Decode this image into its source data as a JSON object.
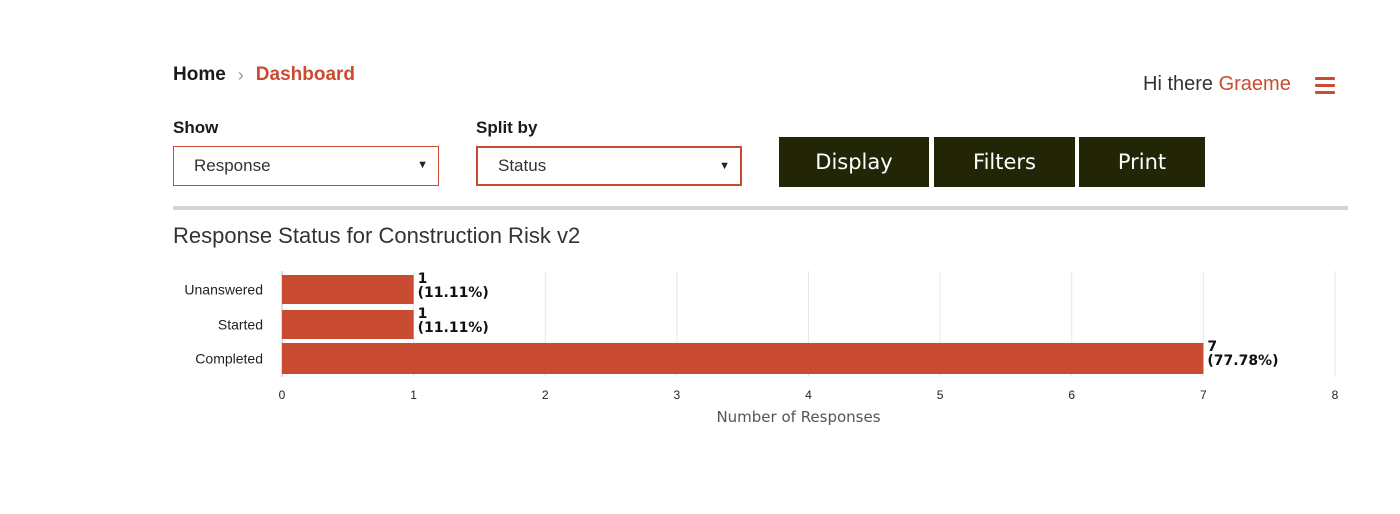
{
  "breadcrumb": {
    "home": "Home",
    "separator": "›",
    "current": "Dashboard"
  },
  "header": {
    "greeting": "Hi there",
    "user": "Graeme",
    "menu_icon": "hamburger-menu-icon"
  },
  "controls": {
    "show_label": "Show",
    "show_value": "Response",
    "split_label": "Split by",
    "split_value": "Status",
    "caret": "▼",
    "buttons": {
      "display": "Display",
      "filters": "Filters",
      "print": "Print"
    }
  },
  "colors": {
    "accent": "#c94b32",
    "button_bg": "#222606",
    "bar": "#c94b32"
  },
  "chart_data": {
    "type": "bar",
    "orientation": "horizontal",
    "title": "Response Status for Construction Risk v2",
    "xlabel": "Number of Responses",
    "ylabel": "",
    "categories": [
      "Unanswered",
      "Started",
      "Completed"
    ],
    "values": [
      1,
      1,
      7
    ],
    "value_labels": [
      "1",
      "1",
      "7"
    ],
    "percent_labels": [
      "(11.11%)",
      "(11.11%)",
      "(77.78%)"
    ],
    "xlim": [
      0,
      8
    ],
    "xticks": [
      "0",
      "1",
      "2",
      "3",
      "4",
      "5",
      "6",
      "7",
      "8"
    ],
    "grid": true
  }
}
